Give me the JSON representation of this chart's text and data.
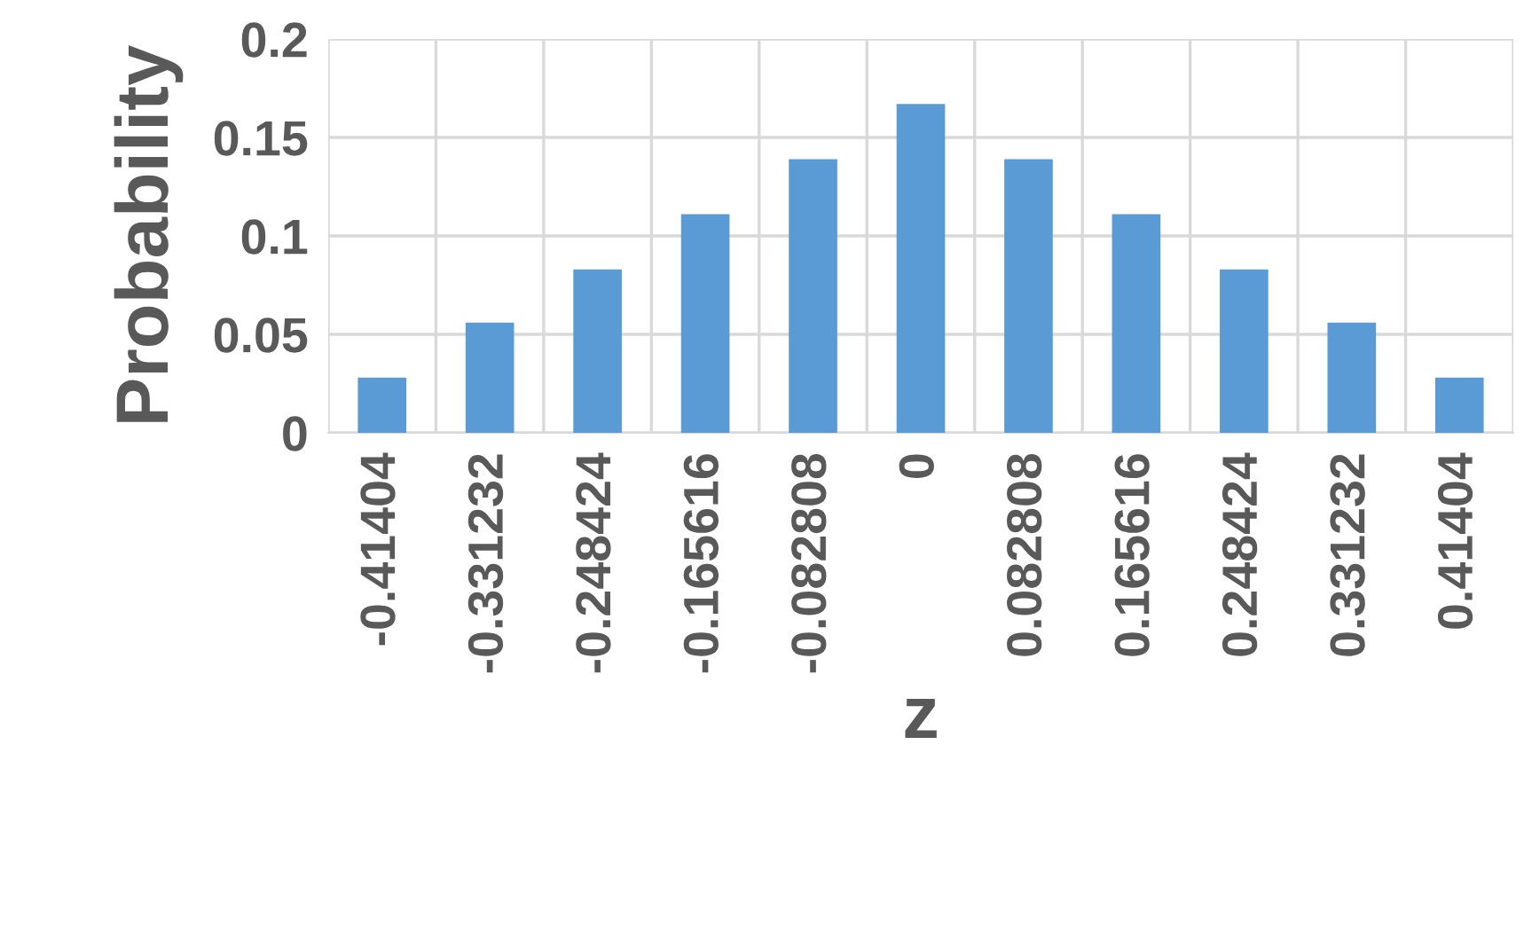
{
  "chart_data": {
    "type": "bar",
    "xlabel": "z",
    "ylabel": "Probability",
    "categories": [
      "-0.41404",
      "-0.331232",
      "-0.248424",
      "-0.165616",
      "-0.082808",
      "0",
      "0.082808",
      "0.165616",
      "0.248424",
      "0.331232",
      "0.41404"
    ],
    "values": [
      0.028,
      0.056,
      0.083,
      0.111,
      0.139,
      0.167,
      0.139,
      0.111,
      0.083,
      0.056,
      0.028
    ],
    "color": "#5b9bd5",
    "ylim": [
      0,
      0.2
    ],
    "yticks": [
      0,
      {
        "value": 0.05,
        "label": "0.05"
      },
      {
        "value": 0.1,
        "label": "0.1"
      },
      {
        "value": 0.15,
        "label": "0.15"
      },
      {
        "value": 0.2,
        "label": "0.2"
      }
    ],
    "grid": true,
    "legend": false
  }
}
